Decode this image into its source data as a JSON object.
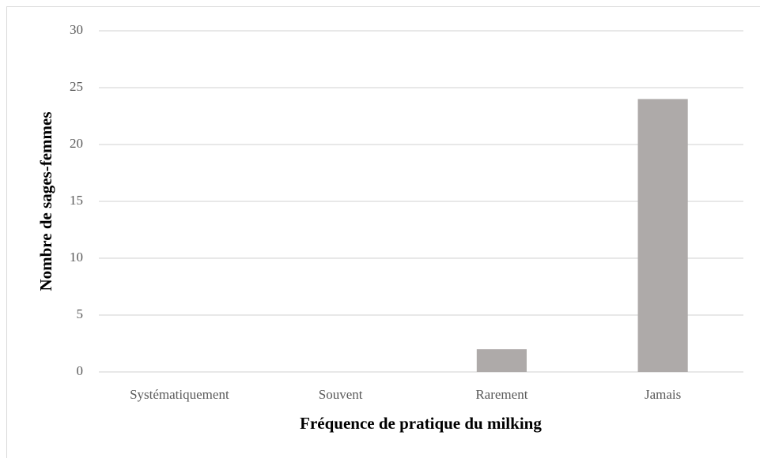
{
  "chart_data": {
    "type": "bar",
    "xlabel": "Fréquence de pratique  du milking",
    "ylabel": "Nombre de sages-femmes",
    "categories": [
      "Systématiquement",
      "Souvent",
      "Rarement",
      "Jamais"
    ],
    "values": [
      0,
      0,
      2,
      24
    ],
    "color": "#aeaaa9",
    "ylim": [
      0,
      30
    ],
    "yticks": [
      0,
      5,
      10,
      15,
      20,
      25,
      30
    ],
    "grid": true
  }
}
